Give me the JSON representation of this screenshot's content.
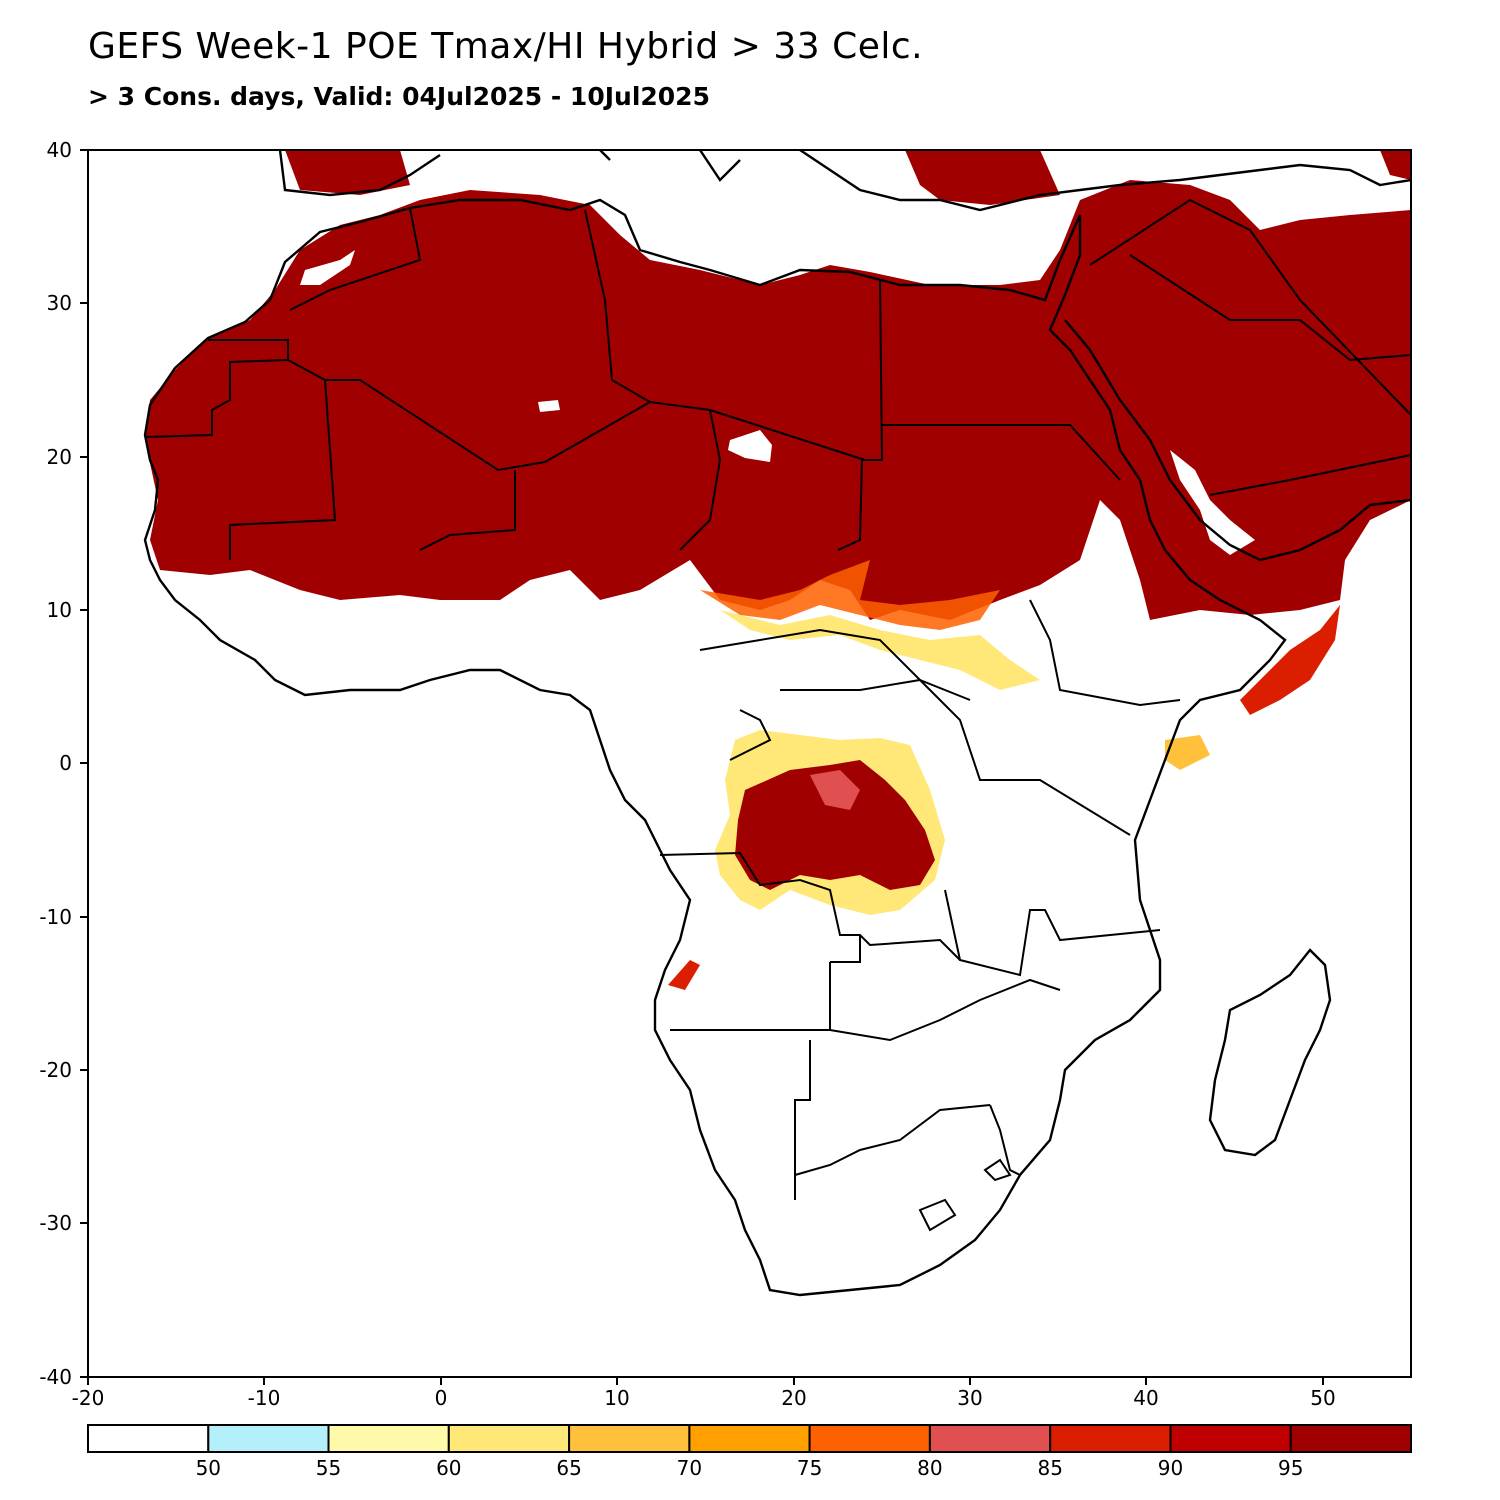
{
  "title": "GEFS Week-1 POE Tmax/HI Hybrid > 33 Celc.",
  "subtitle": "> 3 Cons. days, Valid: 04Jul2025 - 10Jul2025",
  "map": {
    "lon_range": [
      -20,
      55
    ],
    "lat_range": [
      -40,
      40
    ],
    "x_ticks": [
      "-20",
      "-10",
      "0",
      "10",
      "20",
      "30",
      "40",
      "50"
    ],
    "y_ticks": [
      "40",
      "30",
      "20",
      "10",
      "0",
      "-10",
      "-20",
      "-30",
      "-40"
    ],
    "field": "probability of exceedance (%)",
    "region": "Africa"
  },
  "colorbar": {
    "labels": [
      "50",
      "55",
      "60",
      "65",
      "70",
      "75",
      "80",
      "85",
      "90",
      "95"
    ],
    "colors": [
      "#ffffff",
      "#b4f0fa",
      "#fffaaa",
      "#ffe878",
      "#ffc03c",
      "#ffa000",
      "#ff6000",
      "#e15050",
      "#dc1e00",
      "#c00000",
      "#a00000"
    ]
  }
}
